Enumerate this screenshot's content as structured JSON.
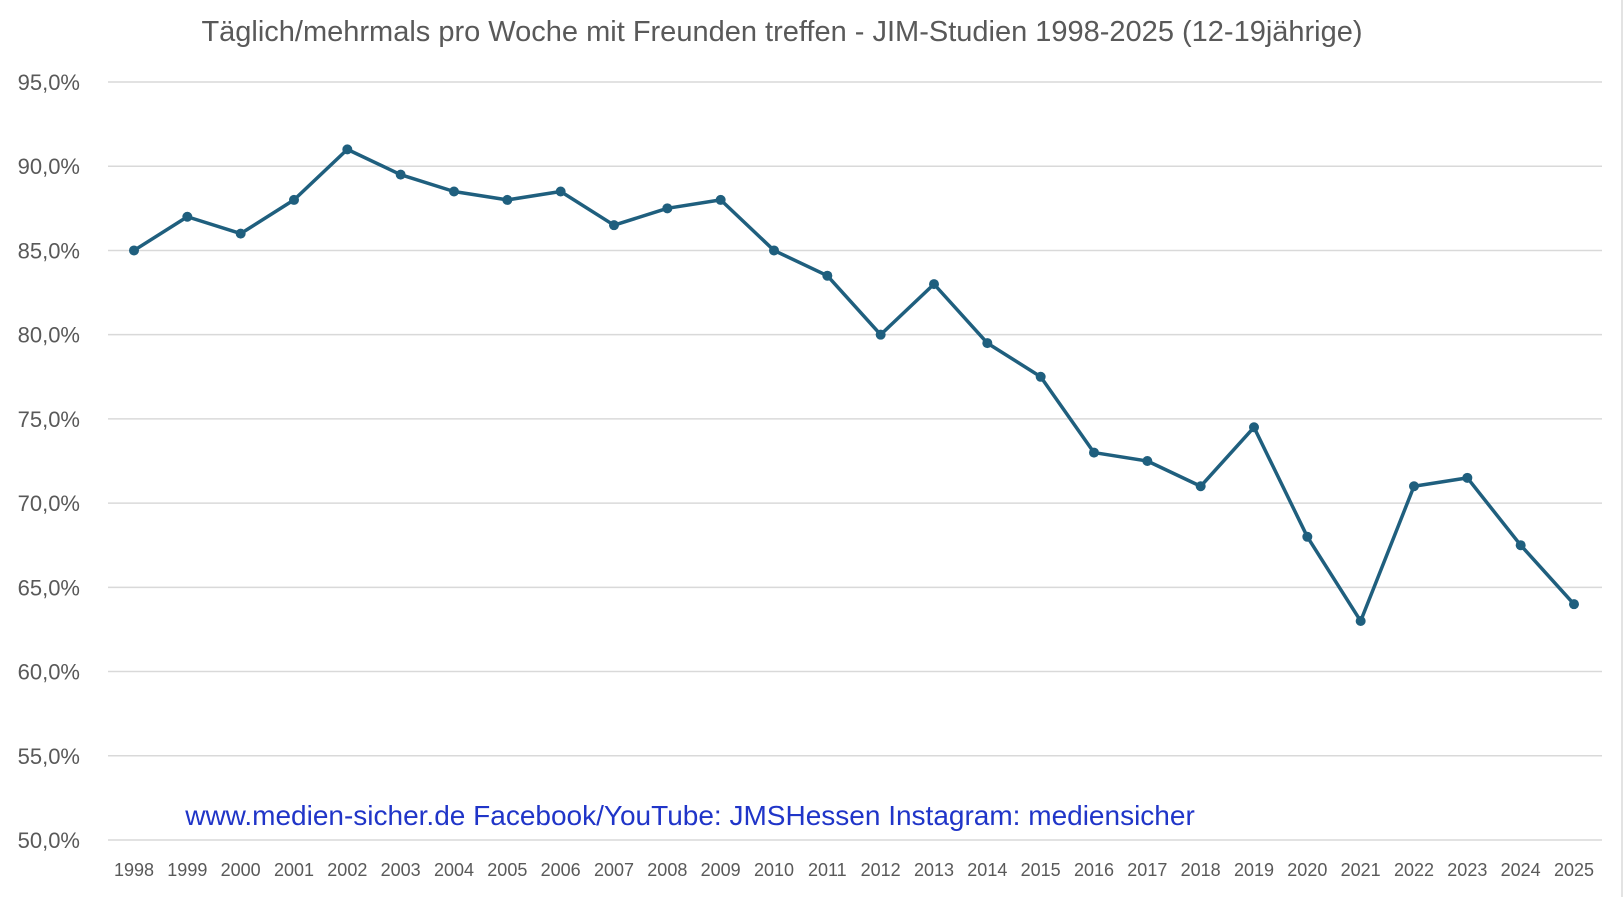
{
  "chart_data": {
    "type": "line",
    "title": "Täglich/mehrmals pro Woche mit Freunden treffen - JIM-Studien 1998-2025 (12-19jährige)",
    "xlabel": "",
    "ylabel": "",
    "ylim": [
      50,
      95
    ],
    "ytick_values": [
      50,
      55,
      60,
      65,
      70,
      75,
      80,
      85,
      90,
      95
    ],
    "ytick_labels": [
      "50,0%",
      "55,0%",
      "60,0%",
      "65,0%",
      "70,0%",
      "75,0%",
      "80,0%",
      "85,0%",
      "90,0%",
      "95,0%"
    ],
    "grid": true,
    "legend": "none",
    "categories": [
      "1998",
      "1999",
      "2000",
      "2001",
      "2002",
      "2003",
      "2004",
      "2005",
      "2006",
      "2007",
      "2008",
      "2009",
      "2010",
      "2011",
      "2012",
      "2013",
      "2014",
      "2015",
      "2016",
      "2017",
      "2018",
      "2019",
      "2020",
      "2021",
      "2022",
      "2023",
      "2024",
      "2025"
    ],
    "series": [
      {
        "name": "Täglich/mehrmals pro Woche mit Freunden treffen",
        "color": "#1f5f7e",
        "values": [
          85,
          87,
          86,
          88,
          91,
          89.5,
          88.5,
          88,
          88.5,
          86.5,
          87.5,
          88,
          85,
          83.5,
          80,
          83,
          79.5,
          77.5,
          73,
          72.5,
          71,
          74.5,
          68,
          63,
          71,
          71.5,
          67.5,
          64
        ]
      }
    ],
    "annotations": [
      "www.medien-sicher.de  Facebook/YouTube: JMSHessen Instagram: mediensicher"
    ]
  }
}
